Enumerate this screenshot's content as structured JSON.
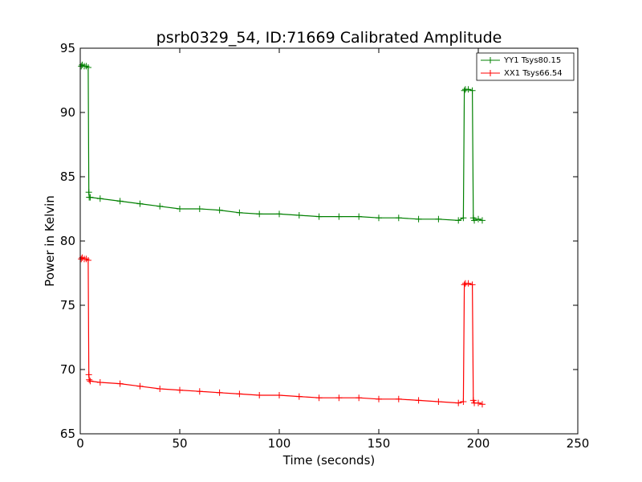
{
  "chart_data": {
    "type": "line",
    "title": "psrb0329_54, ID:71669 Calibrated Amplitude",
    "xlabel": "Time (seconds)",
    "ylabel": "Power in Kelvin",
    "xlim": [
      0,
      250
    ],
    "ylim": [
      65,
      95
    ],
    "xticks": [
      0,
      50,
      100,
      150,
      200,
      250
    ],
    "yticks": [
      65,
      70,
      75,
      80,
      85,
      90,
      95
    ],
    "grid": false,
    "legend_position": "top-right",
    "series": [
      {
        "name": "YY1 Tsys80.15",
        "color": "#008000",
        "marker": "+",
        "x": [
          0.5,
          1,
          2,
          3,
          4,
          4.3,
          4.5,
          5,
          10,
          20,
          30,
          40,
          50,
          60,
          70,
          80,
          90,
          100,
          110,
          120,
          130,
          140,
          150,
          160,
          170,
          180,
          190,
          192.5,
          193,
          193.5,
          195,
          197,
          197.5,
          198,
          200,
          202
        ],
        "y": [
          93.6,
          93.7,
          93.6,
          93.6,
          93.5,
          83.8,
          83.4,
          83.4,
          83.3,
          83.1,
          82.9,
          82.7,
          82.5,
          82.5,
          82.4,
          82.2,
          82.1,
          82.1,
          82.0,
          81.9,
          81.9,
          81.9,
          81.8,
          81.8,
          81.7,
          81.7,
          81.6,
          81.8,
          91.7,
          91.8,
          91.8,
          91.7,
          81.8,
          81.6,
          81.7,
          81.6
        ]
      },
      {
        "name": "XX1 Tsys66.54",
        "color": "#ff0000",
        "marker": "+",
        "x": [
          0.5,
          1,
          2,
          3,
          4,
          4.3,
          4.5,
          5,
          10,
          20,
          30,
          40,
          50,
          60,
          70,
          80,
          90,
          100,
          110,
          120,
          130,
          140,
          150,
          160,
          170,
          180,
          190,
          192.5,
          193,
          193.5,
          195,
          197,
          197.5,
          198,
          200,
          202
        ],
        "y": [
          78.6,
          78.7,
          78.6,
          78.6,
          78.5,
          69.6,
          69.2,
          69.1,
          69.0,
          68.9,
          68.7,
          68.5,
          68.4,
          68.3,
          68.2,
          68.1,
          68.0,
          68.0,
          67.9,
          67.8,
          67.8,
          67.8,
          67.7,
          67.7,
          67.6,
          67.5,
          67.4,
          67.5,
          76.6,
          76.7,
          76.7,
          76.6,
          67.6,
          67.4,
          67.4,
          67.3
        ]
      }
    ]
  }
}
